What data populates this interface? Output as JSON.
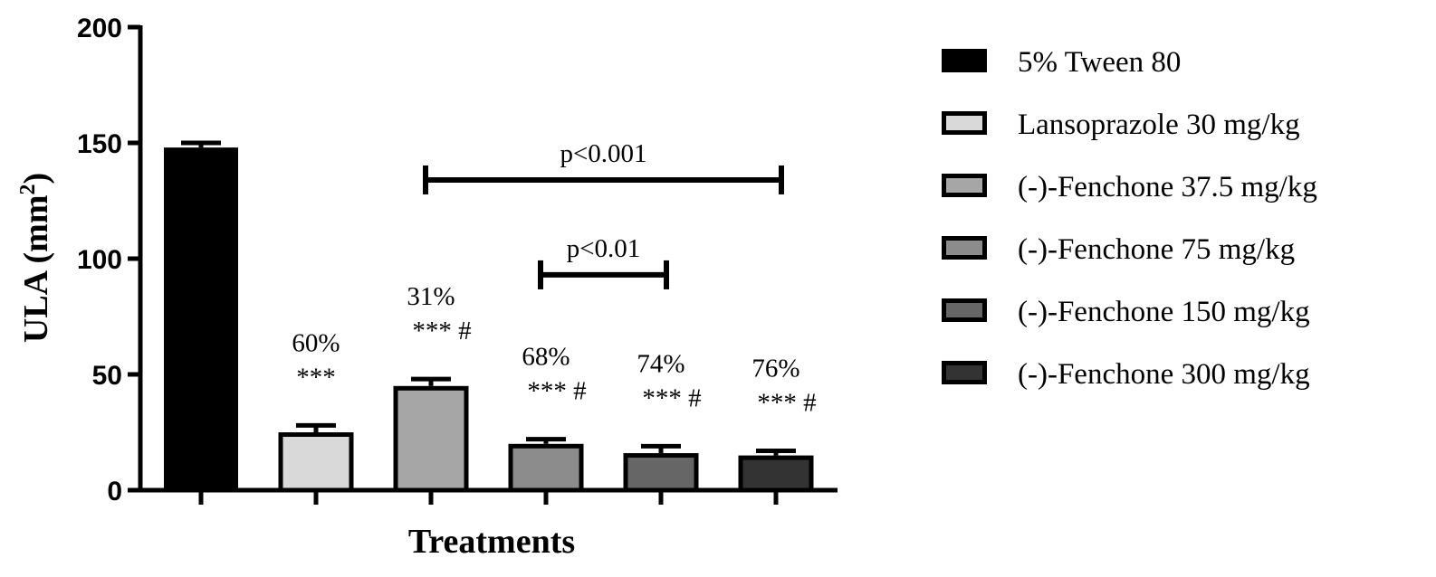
{
  "chart_data": {
    "type": "bar",
    "ylabel": "ULA (mm",
    "ylabel_sup": "2",
    "ylabel_close": ")",
    "xlabel": "Treatments",
    "ylim": [
      0,
      200
    ],
    "yticks": [
      "0",
      "50",
      "100",
      "150",
      "200"
    ],
    "ytick_values": [
      0,
      50,
      100,
      150,
      200
    ],
    "legend_position": "right",
    "series": [
      {
        "name": "5% Tween 80",
        "value": 148,
        "error": 2,
        "color": "#000000",
        "pct": "",
        "stars": ""
      },
      {
        "name": "Lansoprazole 30 mg/kg",
        "value": 25,
        "error": 3,
        "color": "#d9d9d9",
        "pct": "60%",
        "stars": "***"
      },
      {
        "name": "(-)-Fenchone 37.5 mg/kg",
        "value": 45,
        "error": 3,
        "color": "#a6a6a6",
        "pct": "31%",
        "stars": "*** #"
      },
      {
        "name": "(-)-Fenchone 75 mg/kg",
        "value": 20,
        "error": 2,
        "color": "#8c8c8c",
        "pct": "68%",
        "stars": "*** #"
      },
      {
        "name": "(-)-Fenchone 150 mg/kg",
        "value": 16,
        "error": 3,
        "color": "#666666",
        "pct": "74%",
        "stars": "*** #"
      },
      {
        "name": "(-)-Fenchone 300 mg/kg",
        "value": 15,
        "error": 2,
        "color": "#333333",
        "pct": "76%",
        "stars": "*** #"
      }
    ],
    "brackets": [
      {
        "label": "p<0.001",
        "from": 2,
        "to": 5,
        "y": 134
      },
      {
        "label": "p<0.01",
        "from": 3,
        "to": 4,
        "y": 93
      }
    ]
  }
}
